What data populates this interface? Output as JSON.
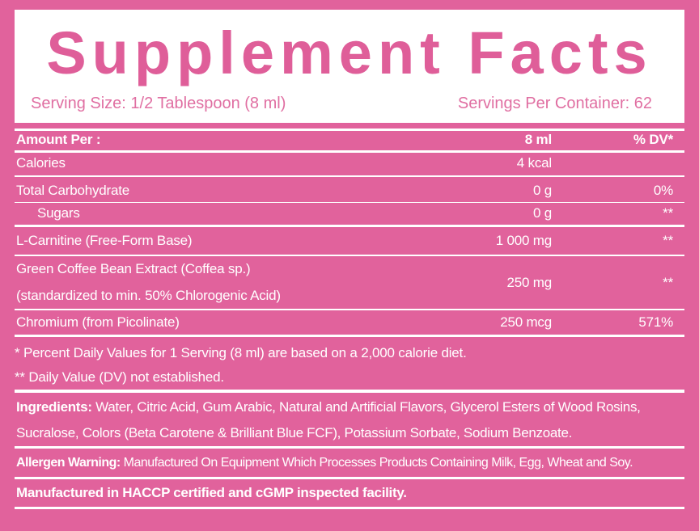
{
  "header": {
    "title": "Supplement Facts",
    "serving_size": "Serving Size: 1/2 Tablespoon (8 ml)",
    "servings_per_container": "Servings Per Container: 62"
  },
  "table": {
    "columns": [
      "Amount Per :",
      "8 ml",
      "% DV*"
    ],
    "rows": [
      {
        "name": "Calories",
        "amount": "4 kcal"
      },
      {
        "name": "Total Carbohydrate",
        "amount": "0 g",
        "dv": "0%"
      },
      {
        "name": "Sugars",
        "amount": "0 g",
        "dv": "**"
      },
      {
        "name": "L-Carnitine (Free-Form Base)",
        "amount": "1 000 mg",
        "dv": "**"
      },
      {
        "name": [
          "Green Coffee Bean Extract (Coffea sp.)",
          "(standardized to min. 50% Chlorogenic Acid)"
        ],
        "amount": "250 mg",
        "dv": "**"
      },
      {
        "name": "Chromium (from Picolinate)",
        "amount": "250 mcg",
        "dv": "571%"
      }
    ]
  },
  "footnotes": [
    "* Percent Daily Values for 1 Serving (8 ml) are based on a 2,000 calorie diet.",
    "** Daily Value (DV) not established."
  ],
  "ingredients": {
    "label": "Ingredients:",
    "text": "Water, Citric Acid, Gum Arabic, Natural and Artificial Flavors, Glycerol Esters of Wood Rosins, Sucralose, Colors (Beta Carotene & Brilliant Blue FCF), Potassium Sorbate, Sodium Benzoate."
  },
  "allergen": {
    "label": "Allergen Warning:",
    "text": "Manufactured On Equipment Which Processes Products Containing Milk, Egg, Wheat and Soy."
  },
  "manufactured": "Manufactured in HACCP certified and cGMP inspected facility."
}
